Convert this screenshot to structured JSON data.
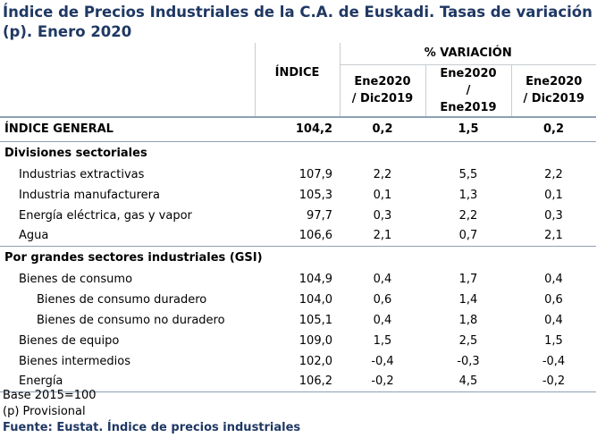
{
  "title": "Índice de Precios Industriales de la C.A. de Euskadi. Tasas de variación (p). Enero 2020",
  "header": {
    "indice": "ÍNDICE",
    "variacion": "% VARIACIÓN",
    "col1": "Ene2020 / Dic2019",
    "col2": "Ene2020 / Ene2019",
    "col3": "Ene2020 / Dic2019"
  },
  "general": {
    "label": "ÍNDICE GENERAL",
    "indice": "104,2",
    "v1": "0,2",
    "v2": "1,5",
    "v3": "0,2"
  },
  "sections": {
    "divisiones": "Divisiones sectoriales",
    "gsi": "Por grandes sectores industriales (GSI)"
  },
  "rows": [
    {
      "label": "Industrias extractivas",
      "indice": "107,9",
      "v1": "2,2",
      "v2": "5,5",
      "v3": "2,2"
    },
    {
      "label": "Industria manufacturera",
      "indice": "105,3",
      "v1": "0,1",
      "v2": "1,3",
      "v3": "0,1"
    },
    {
      "label": "Energía eléctrica, gas y vapor",
      "indice": "97,7",
      "v1": "0,3",
      "v2": "2,2",
      "v3": "0,3"
    },
    {
      "label": "Agua",
      "indice": "106,6",
      "v1": "2,1",
      "v2": "0,7",
      "v3": "2,1"
    },
    {
      "label": "Bienes de consumo",
      "indice": "104,9",
      "v1": "0,4",
      "v2": "1,7",
      "v3": "0,4"
    },
    {
      "label": "Bienes de consumo duradero",
      "indice": "104,0",
      "v1": "0,6",
      "v2": "1,4",
      "v3": "0,6"
    },
    {
      "label": "Bienes de consumo no duradero",
      "indice": "105,1",
      "v1": "0,4",
      "v2": "1,8",
      "v3": "0,4"
    },
    {
      "label": "Bienes de equipo",
      "indice": "109,0",
      "v1": "1,5",
      "v2": "2,5",
      "v3": "1,5"
    },
    {
      "label": "Bienes intermedios",
      "indice": "102,0",
      "v1": "-0,4",
      "v2": "-0,3",
      "v3": "-0,4"
    },
    {
      "label": "Energía",
      "indice": "106,2",
      "v1": "-0,2",
      "v2": "4,5",
      "v3": "-0,2"
    }
  ],
  "footer": {
    "base": "Base 2015=100",
    "provisional": "(p) Provisional",
    "source": "Fuente: Eustat. Índice de precios industriales"
  },
  "colors": {
    "title": "#1f3864",
    "rule": "#8ea0b4"
  }
}
